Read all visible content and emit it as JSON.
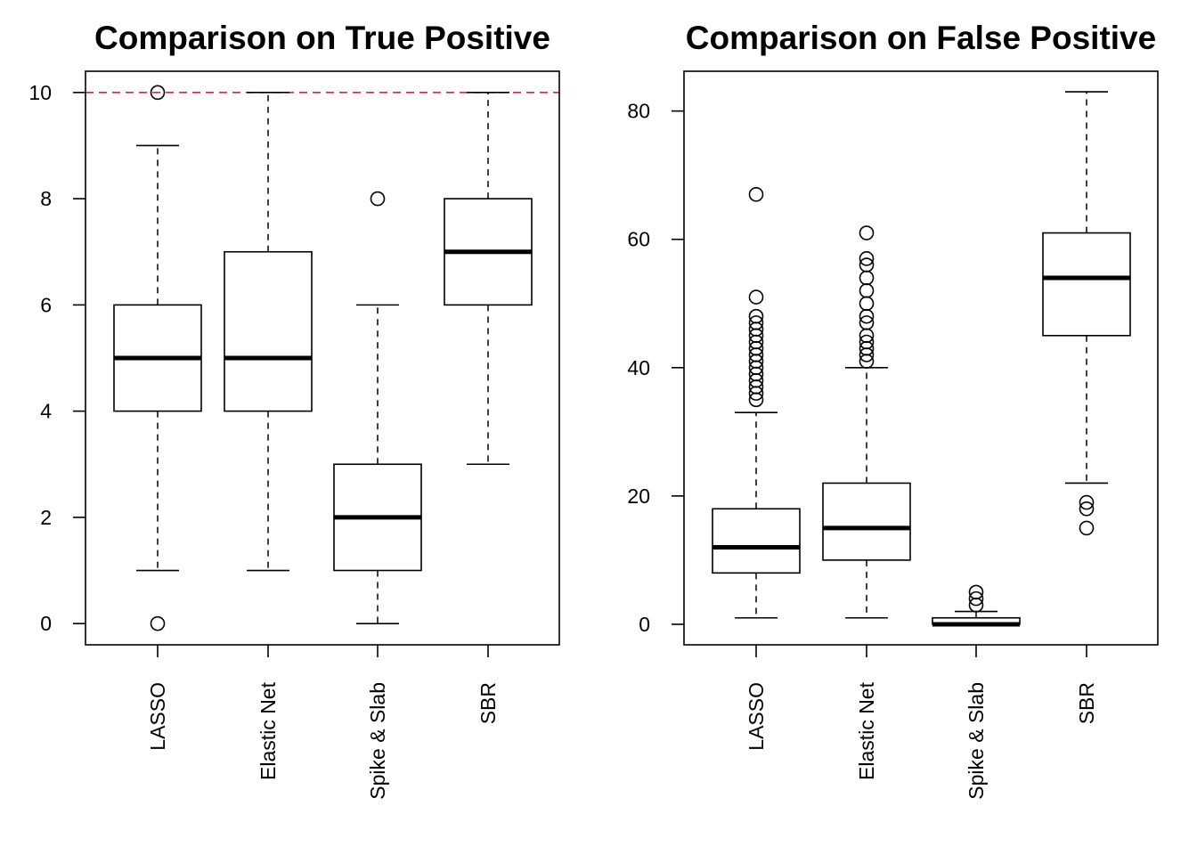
{
  "chart_data": [
    {
      "type": "box",
      "title": "Comparison on True Positive",
      "xlabel": "",
      "ylabel": "",
      "categories": [
        "LASSO",
        "Elastic Net",
        "Spike & Slab",
        "SBR"
      ],
      "ylim": [
        -0.4,
        10.4
      ],
      "yticks": [
        "0",
        "2",
        "4",
        "6",
        "8",
        "10"
      ],
      "reference_line": {
        "y": 10,
        "color": "#e8202a",
        "style": "dashed"
      },
      "boxes": [
        {
          "name": "LASSO",
          "whisker_low": 1,
          "q1": 4,
          "median": 5,
          "q3": 6,
          "whisker_high": 9,
          "outliers": [
            0,
            10
          ]
        },
        {
          "name": "Elastic Net",
          "whisker_low": 1,
          "q1": 4,
          "median": 5,
          "q3": 7,
          "whisker_high": 10,
          "outliers": []
        },
        {
          "name": "Spike & Slab",
          "whisker_low": 0,
          "q1": 1,
          "median": 2,
          "q3": 3,
          "whisker_high": 6,
          "outliers": [
            8
          ]
        },
        {
          "name": "SBR",
          "whisker_low": 3,
          "q1": 6,
          "median": 7,
          "q3": 8,
          "whisker_high": 10,
          "outliers": []
        }
      ]
    },
    {
      "type": "box",
      "title": "Comparison on False Positive",
      "xlabel": "",
      "ylabel": "",
      "categories": [
        "LASSO",
        "Elastic Net",
        "Spike & Slab",
        "SBR"
      ],
      "ylim": [
        -3.2,
        86.2
      ],
      "yticks": [
        "0",
        "20",
        "40",
        "60",
        "80"
      ],
      "boxes": [
        {
          "name": "LASSO",
          "whisker_low": 1,
          "q1": 8,
          "median": 12,
          "q3": 18,
          "whisker_high": 33,
          "outliers": [
            35,
            36,
            37,
            38,
            39,
            40,
            41,
            42,
            43,
            44,
            45,
            46,
            47,
            48,
            51,
            67
          ]
        },
        {
          "name": "Elastic Net",
          "whisker_low": 1,
          "q1": 10,
          "median": 15,
          "q3": 22,
          "whisker_high": 40,
          "outliers": [
            41,
            42,
            43,
            44,
            45,
            47,
            48,
            50,
            52,
            54,
            56,
            57,
            61
          ]
        },
        {
          "name": "Spike & Slab",
          "whisker_low": 0,
          "q1": 0,
          "median": 0,
          "q3": 1,
          "whisker_high": 2,
          "outliers": [
            3,
            4,
            5
          ]
        },
        {
          "name": "SBR",
          "whisker_low": 22,
          "q1": 45,
          "median": 54,
          "q3": 61,
          "whisker_high": 83,
          "outliers": [
            15,
            18,
            19
          ]
        }
      ]
    }
  ]
}
